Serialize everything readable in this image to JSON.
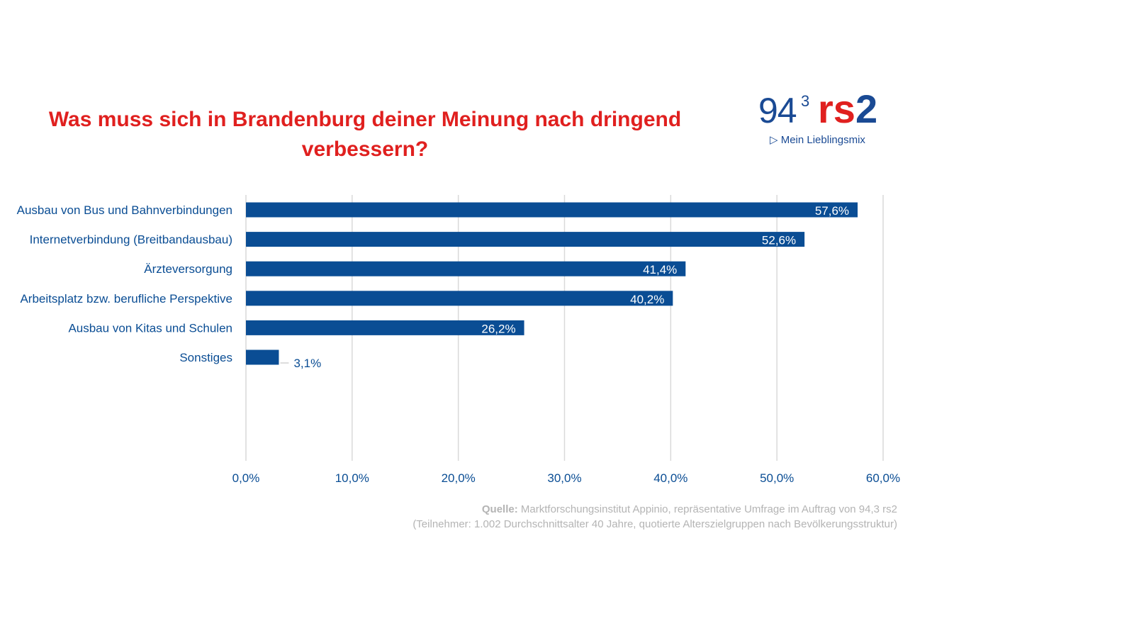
{
  "logo": {
    "text": "94,3 rs2",
    "slogan": "Mein Lieblingsmix",
    "num": "94",
    "sup": "3",
    "brand": "rs2"
  },
  "source": {
    "label": "Quelle:",
    "line1": " Marktforschungsinstitut Appinio, repräsentative Umfrage im Auftrag von 94,3 rs2",
    "line2": "(Teilnehmer: 1.002 Durchschnittsalter 40 Jahre, quotierte Alterszielgruppen nach Bevölkerungsstruktur)"
  },
  "colors": {
    "bar": "#0a4d94",
    "title": "#e0201f",
    "label": "#0a4d94",
    "grid": "#d9d9d9"
  },
  "chart_data": {
    "type": "bar",
    "orientation": "horizontal",
    "title": "Was muss sich in Brandenburg deiner Meinung nach dringend verbessern?",
    "categories": [
      "Ausbau von Bus und Bahnverbindungen",
      "Internetverbindung (Breitbandausbau)",
      "Ärzteversorgung",
      "Arbeitsplatz bzw. berufliche Perspektive",
      "Ausbau von Kitas und Schulen",
      "Sonstiges"
    ],
    "values": [
      57.6,
      52.6,
      41.4,
      40.2,
      26.2,
      3.1
    ],
    "data_labels": [
      "57,6%",
      "52,6%",
      "41,4%",
      "40,2%",
      "26,2%",
      "3,1%"
    ],
    "xlim": [
      0,
      60
    ],
    "ticks": [
      "0,0%",
      "10,0%",
      "20,0%",
      "30,0%",
      "40,0%",
      "50,0%",
      "60,0%"
    ],
    "grid": true,
    "xlabel": "",
    "ylabel": ""
  }
}
